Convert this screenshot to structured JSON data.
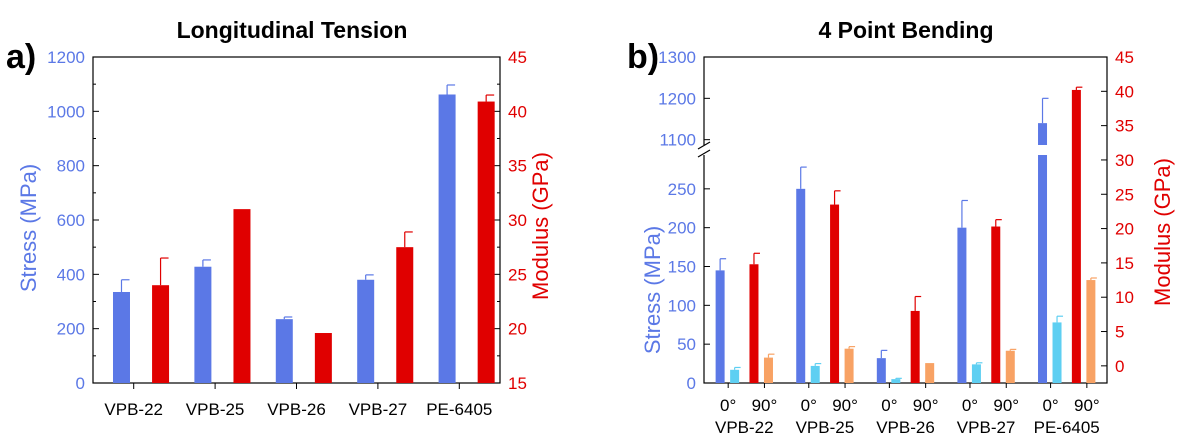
{
  "panels": {
    "a": {
      "label": "a)"
    },
    "b": {
      "label": "b)"
    }
  },
  "colors": {
    "stress": "#5b78e6",
    "modulus": "#e00000",
    "stress_90": "#5ecff2",
    "modulus_90": "#f8a264",
    "axis": "#000000"
  },
  "chart_data": [
    {
      "panel": "a",
      "type": "bar",
      "title": "Longitudinal Tension",
      "ylabel": "Stress (MPa)",
      "y2label": "Modulus (GPa)",
      "categories": [
        "VPB-22",
        "VPB-25",
        "VPB-26",
        "VPB-27",
        "PE-6405"
      ],
      "ylim": [
        0,
        1200
      ],
      "yticks": [
        0,
        200,
        400,
        600,
        800,
        1000,
        1200
      ],
      "y2lim": [
        15,
        45
      ],
      "y2ticks": [
        15,
        20,
        25,
        30,
        35,
        40,
        45
      ],
      "series": [
        {
          "axis": "left",
          "color": "#5b78e6",
          "values": [
            335,
            428,
            235,
            380,
            1062
          ],
          "errors": [
            45,
            25,
            8,
            18,
            35
          ]
        },
        {
          "axis": "right",
          "color": "#e00000",
          "values": [
            24.0,
            31.0,
            19.6,
            27.5,
            40.9
          ],
          "errors": [
            2.5,
            0,
            0,
            1.4,
            0.6
          ]
        }
      ]
    },
    {
      "panel": "b",
      "type": "bar",
      "title": "4 Point Bending",
      "ylabel": "Stress (MPa)",
      "y2label": "Modulus (GPa)",
      "categories": [
        "VPB-22",
        "VPB-25",
        "VPB-26",
        "VPB-27",
        "PE-6405"
      ],
      "orientations": [
        "0°",
        "90°"
      ],
      "ylim": [
        0,
        1300
      ],
      "y_axis_break": [
        300,
        1075
      ],
      "yticks_lower": [
        0,
        50,
        100,
        150,
        200,
        250
      ],
      "yticks_upper": [
        1100,
        1200,
        1300
      ],
      "y2lim": [
        -2.5,
        45
      ],
      "y2ticks": [
        0,
        5,
        10,
        15,
        20,
        25,
        30,
        35,
        40,
        45
      ],
      "series": [
        {
          "axis": "left",
          "orientation": "0°",
          "color": "#5b78e6",
          "values": [
            145,
            250,
            32,
            200,
            1140
          ],
          "errors": [
            15,
            28,
            10,
            35,
            60
          ]
        },
        {
          "axis": "right",
          "orientation": "0°",
          "color": "#e00000",
          "values": [
            14.8,
            23.5,
            8.0,
            20.3,
            40.2
          ],
          "errors": [
            1.6,
            2.0,
            2.1,
            1.0,
            0.4
          ]
        },
        {
          "axis": "left",
          "orientation": "90°",
          "color": "#5ecff2",
          "values": [
            17,
            22,
            5,
            24,
            78
          ],
          "errors": [
            3,
            3,
            1,
            2,
            8
          ]
        },
        {
          "axis": "right",
          "orientation": "90°",
          "color": "#f8a264",
          "values": [
            1.2,
            2.5,
            0.4,
            2.2,
            12.5
          ],
          "errors": [
            0.5,
            0.3,
            0,
            0.2,
            0.3
          ]
        }
      ]
    }
  ]
}
